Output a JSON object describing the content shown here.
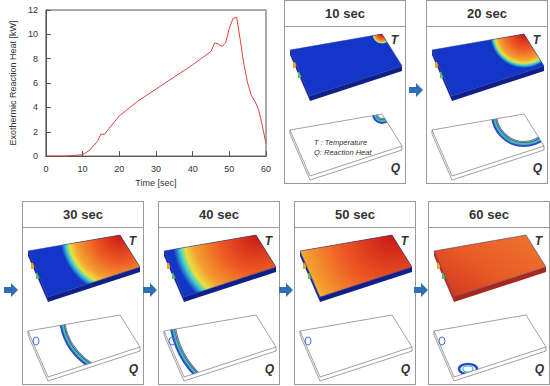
{
  "chart_data": {
    "type": "line",
    "x": [
      0,
      5,
      10,
      12,
      14,
      15,
      16,
      17,
      20,
      25,
      30,
      35,
      40,
      45,
      46,
      47,
      48,
      49,
      50,
      51,
      52,
      53,
      54,
      55,
      56,
      57,
      58,
      59,
      60
    ],
    "values": [
      0,
      0,
      0.1,
      0.5,
      1.2,
      1.8,
      1.8,
      2.2,
      3.3,
      4.5,
      5.5,
      6.5,
      7.5,
      8.6,
      9.3,
      9.2,
      9.0,
      9.3,
      10.5,
      11.3,
      11.4,
      9.5,
      7.5,
      6.0,
      5.0,
      4.5,
      3.8,
      2.5,
      1.0
    ],
    "color": "#e8413c",
    "xlabel": "Time [sec]",
    "ylabel": "Exothermic Reaction Heat [kW]",
    "xlim": [
      0,
      60
    ],
    "xticks": [
      0,
      10,
      20,
      30,
      40,
      50,
      60
    ],
    "ylim": [
      0,
      12
    ],
    "yticks": [
      0,
      2,
      4,
      6,
      8,
      10,
      12
    ],
    "grid": false
  },
  "panels": [
    {
      "title": "10 sec",
      "field_label": "T",
      "heat_label": "Q",
      "key": [
        "T : Temperature",
        "Q: Reaction Heat"
      ]
    },
    {
      "title": "20 sec",
      "field_label": "T",
      "heat_label": "Q"
    },
    {
      "title": "30 sec",
      "field_label": "T",
      "heat_label": "Q"
    },
    {
      "title": "40 sec",
      "field_label": "T",
      "heat_label": "Q"
    },
    {
      "title": "50 sec",
      "field_label": "T",
      "heat_label": "Q"
    },
    {
      "title": "60 sec",
      "field_label": "T",
      "heat_label": "Q"
    }
  ]
}
